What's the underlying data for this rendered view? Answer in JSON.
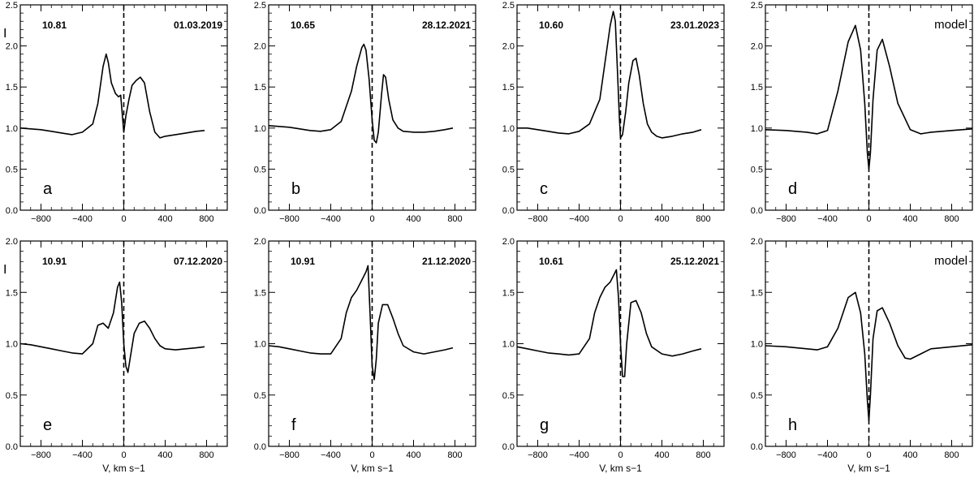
{
  "chart_data": [
    {
      "type": "line",
      "panel_letter": "a",
      "value_label": "10.81",
      "date_label": "01.03.2019",
      "ylabel": "I",
      "xlabel": "",
      "xlim": [
        -1000,
        1000
      ],
      "ylim": [
        0,
        2.5
      ],
      "x_ticks": [
        -800,
        -400,
        0,
        400,
        800
      ],
      "y_ticks": [
        0.0,
        0.5,
        1.0,
        1.5,
        2.0,
        2.5
      ],
      "vline_x": 0,
      "series": [
        {
          "x": [
            -1000,
            -900,
            -800,
            -700,
            -600,
            -500,
            -400,
            -300,
            -250,
            -200,
            -170,
            -150,
            -120,
            -80,
            -50,
            -30,
            -10,
            0,
            20,
            50,
            80,
            120,
            160,
            200,
            250,
            300,
            350,
            400,
            500,
            600,
            700,
            780
          ],
          "y": [
            1.0,
            0.99,
            0.98,
            0.96,
            0.94,
            0.92,
            0.95,
            1.05,
            1.3,
            1.75,
            1.9,
            1.8,
            1.55,
            1.42,
            1.38,
            1.4,
            1.1,
            0.95,
            1.15,
            1.35,
            1.52,
            1.58,
            1.62,
            1.55,
            1.2,
            0.95,
            0.88,
            0.9,
            0.92,
            0.94,
            0.96,
            0.97
          ]
        }
      ]
    },
    {
      "type": "line",
      "panel_letter": "b",
      "value_label": "10.65",
      "date_label": "28.12.2021",
      "ylabel": "",
      "xlabel": "",
      "xlim": [
        -1000,
        1000
      ],
      "ylim": [
        0,
        2.5
      ],
      "x_ticks": [
        -800,
        -400,
        0,
        400,
        800
      ],
      "y_ticks": [
        0.0,
        0.5,
        1.0,
        1.5,
        2.0,
        2.5
      ],
      "vline_x": 0,
      "series": [
        {
          "x": [
            -1000,
            -900,
            -800,
            -700,
            -600,
            -500,
            -400,
            -300,
            -200,
            -150,
            -100,
            -80,
            -60,
            -30,
            0,
            20,
            40,
            60,
            90,
            110,
            130,
            160,
            200,
            250,
            300,
            400,
            500,
            600,
            700,
            780
          ],
          "y": [
            1.03,
            1.02,
            1.01,
            0.99,
            0.97,
            0.96,
            0.98,
            1.08,
            1.45,
            1.75,
            1.98,
            2.02,
            1.95,
            1.6,
            1.1,
            0.85,
            0.82,
            0.95,
            1.4,
            1.65,
            1.62,
            1.35,
            1.1,
            1.0,
            0.96,
            0.95,
            0.95,
            0.96,
            0.98,
            1.0
          ]
        }
      ]
    },
    {
      "type": "line",
      "panel_letter": "c",
      "value_label": "10.60",
      "date_label": "23.01.2023",
      "ylabel": "",
      "xlabel": "",
      "xlim": [
        -1000,
        1000
      ],
      "ylim": [
        0,
        2.5
      ],
      "x_ticks": [
        -800,
        -400,
        0,
        400,
        800
      ],
      "y_ticks": [
        0.0,
        0.5,
        1.0,
        1.5,
        2.0,
        2.5
      ],
      "vline_x": 0,
      "series": [
        {
          "x": [
            -1000,
            -900,
            -800,
            -700,
            -600,
            -500,
            -400,
            -300,
            -200,
            -150,
            -100,
            -70,
            -50,
            -30,
            -10,
            0,
            20,
            50,
            80,
            120,
            150,
            180,
            220,
            260,
            300,
            350,
            400,
            500,
            600,
            700,
            780
          ],
          "y": [
            1.0,
            1.0,
            0.98,
            0.96,
            0.94,
            0.93,
            0.96,
            1.05,
            1.35,
            1.8,
            2.25,
            2.42,
            2.3,
            1.7,
            1.1,
            0.88,
            0.92,
            1.2,
            1.55,
            1.82,
            1.85,
            1.65,
            1.3,
            1.05,
            0.95,
            0.9,
            0.88,
            0.9,
            0.93,
            0.95,
            0.98
          ]
        }
      ]
    },
    {
      "type": "line",
      "panel_letter": "d",
      "value_label": "",
      "date_label": "model",
      "ylabel": "",
      "xlabel": "",
      "xlim": [
        -1000,
        1000
      ],
      "ylim": [
        0,
        2.5
      ],
      "x_ticks": [
        -800,
        -400,
        0,
        400,
        800
      ],
      "y_ticks": [
        0.0,
        0.5,
        1.0,
        1.5,
        2.0,
        2.5
      ],
      "vline_x": 0,
      "series": [
        {
          "x": [
            -1000,
            -800,
            -600,
            -500,
            -400,
            -300,
            -200,
            -130,
            -80,
            -40,
            -15,
            0,
            15,
            40,
            80,
            130,
            200,
            280,
            400,
            500,
            600,
            800,
            1000
          ],
          "y": [
            0.98,
            0.97,
            0.95,
            0.93,
            0.97,
            1.45,
            2.05,
            2.25,
            1.95,
            1.3,
            0.7,
            0.5,
            0.7,
            1.35,
            1.95,
            2.08,
            1.75,
            1.3,
            0.98,
            0.93,
            0.95,
            0.97,
            0.99
          ]
        }
      ]
    },
    {
      "type": "line",
      "panel_letter": "e",
      "value_label": "10.91",
      "date_label": "07.12.2020",
      "ylabel": "I",
      "xlabel": "V, km s−1",
      "xlim": [
        -1000,
        1000
      ],
      "ylim": [
        0,
        2.0
      ],
      "x_ticks": [
        -800,
        -400,
        0,
        400,
        800
      ],
      "y_ticks": [
        0.0,
        0.5,
        1.0,
        1.5,
        2.0
      ],
      "vline_x": 0,
      "series": [
        {
          "x": [
            -1000,
            -900,
            -800,
            -700,
            -600,
            -500,
            -400,
            -300,
            -250,
            -200,
            -150,
            -100,
            -60,
            -40,
            -20,
            0,
            20,
            40,
            60,
            100,
            150,
            200,
            250,
            300,
            350,
            400,
            500,
            600,
            700,
            780
          ],
          "y": [
            1.0,
            0.99,
            0.97,
            0.95,
            0.93,
            0.91,
            0.9,
            1.0,
            1.18,
            1.2,
            1.15,
            1.3,
            1.55,
            1.6,
            1.4,
            1.0,
            0.78,
            0.72,
            0.85,
            1.1,
            1.2,
            1.22,
            1.15,
            1.05,
            0.98,
            0.95,
            0.94,
            0.95,
            0.96,
            0.97
          ]
        }
      ]
    },
    {
      "type": "line",
      "panel_letter": "f",
      "value_label": "10.91",
      "date_label": "21.12.2020",
      "ylabel": "",
      "xlabel": "V, km s−1",
      "xlim": [
        -1000,
        1000
      ],
      "ylim": [
        0,
        2.0
      ],
      "x_ticks": [
        -800,
        -400,
        0,
        400,
        800
      ],
      "y_ticks": [
        0.0,
        0.5,
        1.0,
        1.5,
        2.0
      ],
      "vline_x": 0,
      "series": [
        {
          "x": [
            -1000,
            -900,
            -800,
            -700,
            -600,
            -500,
            -400,
            -300,
            -250,
            -200,
            -150,
            -100,
            -60,
            -40,
            -20,
            0,
            20,
            40,
            60,
            100,
            150,
            200,
            250,
            300,
            400,
            500,
            600,
            700,
            780
          ],
          "y": [
            0.98,
            0.97,
            0.95,
            0.93,
            0.91,
            0.9,
            0.9,
            1.05,
            1.3,
            1.45,
            1.52,
            1.62,
            1.7,
            1.76,
            1.3,
            0.78,
            0.65,
            0.85,
            1.2,
            1.38,
            1.38,
            1.25,
            1.1,
            0.98,
            0.92,
            0.9,
            0.92,
            0.94,
            0.96
          ]
        }
      ]
    },
    {
      "type": "line",
      "panel_letter": "g",
      "value_label": "10.61",
      "date_label": "25.12.2021",
      "ylabel": "",
      "xlabel": "V, km s−1",
      "xlim": [
        -1000,
        1000
      ],
      "ylim": [
        0,
        2.0
      ],
      "x_ticks": [
        -800,
        -400,
        0,
        400,
        800
      ],
      "y_ticks": [
        0.0,
        0.5,
        1.0,
        1.5,
        2.0
      ],
      "vline_x": 0,
      "series": [
        {
          "x": [
            -1000,
            -900,
            -800,
            -700,
            -600,
            -500,
            -400,
            -300,
            -250,
            -200,
            -150,
            -100,
            -60,
            -40,
            -20,
            0,
            20,
            40,
            60,
            100,
            150,
            200,
            250,
            300,
            400,
            500,
            600,
            700,
            780
          ],
          "y": [
            0.97,
            0.95,
            0.93,
            0.91,
            0.9,
            0.89,
            0.9,
            1.05,
            1.3,
            1.45,
            1.55,
            1.6,
            1.68,
            1.72,
            1.45,
            1.0,
            0.68,
            0.68,
            1.0,
            1.4,
            1.42,
            1.3,
            1.1,
            0.97,
            0.9,
            0.88,
            0.9,
            0.93,
            0.95
          ]
        }
      ]
    },
    {
      "type": "line",
      "panel_letter": "h",
      "value_label": "",
      "date_label": "model",
      "ylabel": "",
      "xlabel": "V, km s−1",
      "xlim": [
        -1000,
        1000
      ],
      "ylim": [
        0,
        2.0
      ],
      "x_ticks": [
        -800,
        -400,
        0,
        400,
        800
      ],
      "y_ticks": [
        0.0,
        0.5,
        1.0,
        1.5,
        2.0
      ],
      "vline_x": 0,
      "series": [
        {
          "x": [
            -1000,
            -800,
            -600,
            -500,
            -400,
            -300,
            -200,
            -130,
            -80,
            -40,
            -15,
            0,
            15,
            40,
            80,
            130,
            200,
            280,
            350,
            400,
            500,
            600,
            800,
            1000
          ],
          "y": [
            0.98,
            0.97,
            0.95,
            0.94,
            0.97,
            1.15,
            1.45,
            1.5,
            1.3,
            0.9,
            0.45,
            0.25,
            0.5,
            1.05,
            1.32,
            1.35,
            1.2,
            0.98,
            0.86,
            0.85,
            0.9,
            0.95,
            0.97,
            0.99
          ]
        }
      ]
    }
  ]
}
